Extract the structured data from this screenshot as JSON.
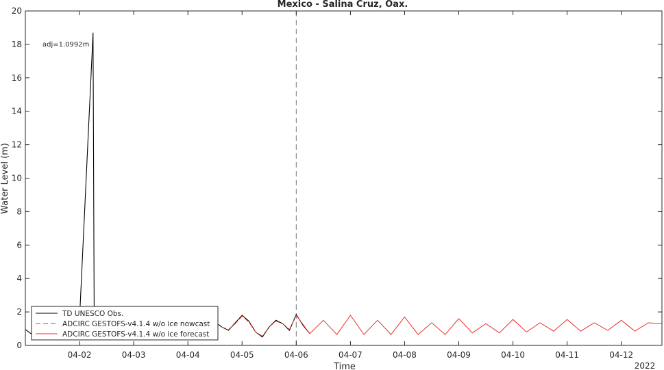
{
  "chart_data": {
    "type": "line",
    "title": "Mexico - Salina Cruz, Oax.",
    "xlabel": "Time",
    "ylabel": "Water Level (m)",
    "year_label": "2022",
    "annotation": "adj=1.0992m",
    "ylim": [
      0,
      20
    ],
    "yticks": [
      0,
      2,
      4,
      6,
      8,
      10,
      12,
      14,
      16,
      18,
      20
    ],
    "xlim": [
      "2022-04-01 00:00",
      "2022-04-12 18:00"
    ],
    "xticks": [
      "04-02",
      "04-03",
      "04-04",
      "04-05",
      "04-06",
      "04-07",
      "04-08",
      "04-09",
      "04-10",
      "04-11",
      "04-12"
    ],
    "nowcast_end": "2022-04-06 00:00",
    "legend_position": "bottom-left",
    "legend": [
      "TD UNESCO Obs.",
      "ADCIRC GESTOFS-v4.1.4 w/o ice nowcast",
      "ADCIRC GESTOFS-v4.1.4 w/o ice forecast"
    ],
    "series": [
      {
        "name": "TD UNESCO Obs.",
        "color": "#000000",
        "style": "solid",
        "x": [
          "2022-04-01 00:00",
          "2022-04-01 03:00",
          "2022-04-01 06:00",
          "2022-04-01 08:00",
          "2022-04-02 00:00",
          "2022-04-02 06:00",
          "2022-04-02 06:30",
          "2022-04-02 07:00",
          "2022-04-04 12:00",
          "2022-04-04 15:00",
          "2022-04-04 18:00",
          "2022-04-04 21:00",
          "2022-04-05 00:00",
          "2022-04-05 03:00",
          "2022-04-05 06:00",
          "2022-04-05 09:00",
          "2022-04-05 12:00",
          "2022-04-05 15:00",
          "2022-04-05 18:00",
          "2022-04-05 21:00",
          "2022-04-06 00:00",
          "2022-04-06 03:00",
          "2022-04-06 06:00"
        ],
        "y": [
          0.95,
          0.65,
          0.6,
          0.7,
          1.6,
          18.7,
          1.2,
          0.5,
          1.4,
          1.1,
          0.9,
          1.35,
          1.8,
          1.45,
          0.8,
          0.5,
          1.1,
          1.5,
          1.3,
          0.9,
          1.85,
          1.2,
          0.7
        ]
      },
      {
        "name": "ADCIRC GESTOFS-v4.1.4 w/o ice nowcast",
        "color": "#e8302a",
        "style": "dashed",
        "x": [
          "2022-04-04 12:00",
          "2022-04-04 15:00",
          "2022-04-04 18:00",
          "2022-04-04 21:00",
          "2022-04-05 00:00",
          "2022-04-05 03:00",
          "2022-04-05 06:00",
          "2022-04-05 09:00",
          "2022-04-05 12:00",
          "2022-04-05 15:00",
          "2022-04-05 18:00",
          "2022-04-05 21:00",
          "2022-04-06 00:00"
        ],
        "y": [
          1.35,
          1.1,
          0.95,
          1.3,
          1.75,
          1.4,
          0.8,
          0.55,
          1.1,
          1.45,
          1.3,
          0.95,
          1.8
        ]
      },
      {
        "name": "ADCIRC GESTOFS-v4.1.4 w/o ice forecast",
        "color": "#e8302a",
        "style": "solid",
        "x": [
          "2022-04-06 00:00",
          "2022-04-06 06:00",
          "2022-04-06 12:00",
          "2022-04-06 18:00",
          "2022-04-07 00:00",
          "2022-04-07 06:00",
          "2022-04-07 12:00",
          "2022-04-07 18:00",
          "2022-04-08 00:00",
          "2022-04-08 06:00",
          "2022-04-08 12:00",
          "2022-04-08 18:00",
          "2022-04-09 00:00",
          "2022-04-09 06:00",
          "2022-04-09 12:00",
          "2022-04-09 18:00",
          "2022-04-10 00:00",
          "2022-04-10 06:00",
          "2022-04-10 12:00",
          "2022-04-10 18:00",
          "2022-04-11 00:00",
          "2022-04-11 06:00",
          "2022-04-11 12:00",
          "2022-04-11 18:00",
          "2022-04-12 00:00",
          "2022-04-12 06:00",
          "2022-04-12 12:00",
          "2022-04-12 18:00"
        ],
        "y": [
          1.8,
          0.7,
          1.5,
          0.65,
          1.8,
          0.65,
          1.5,
          0.65,
          1.7,
          0.65,
          1.35,
          0.65,
          1.6,
          0.75,
          1.3,
          0.75,
          1.55,
          0.8,
          1.35,
          0.85,
          1.55,
          0.85,
          1.35,
          0.9,
          1.5,
          0.85,
          1.35,
          1.3
        ]
      }
    ]
  }
}
